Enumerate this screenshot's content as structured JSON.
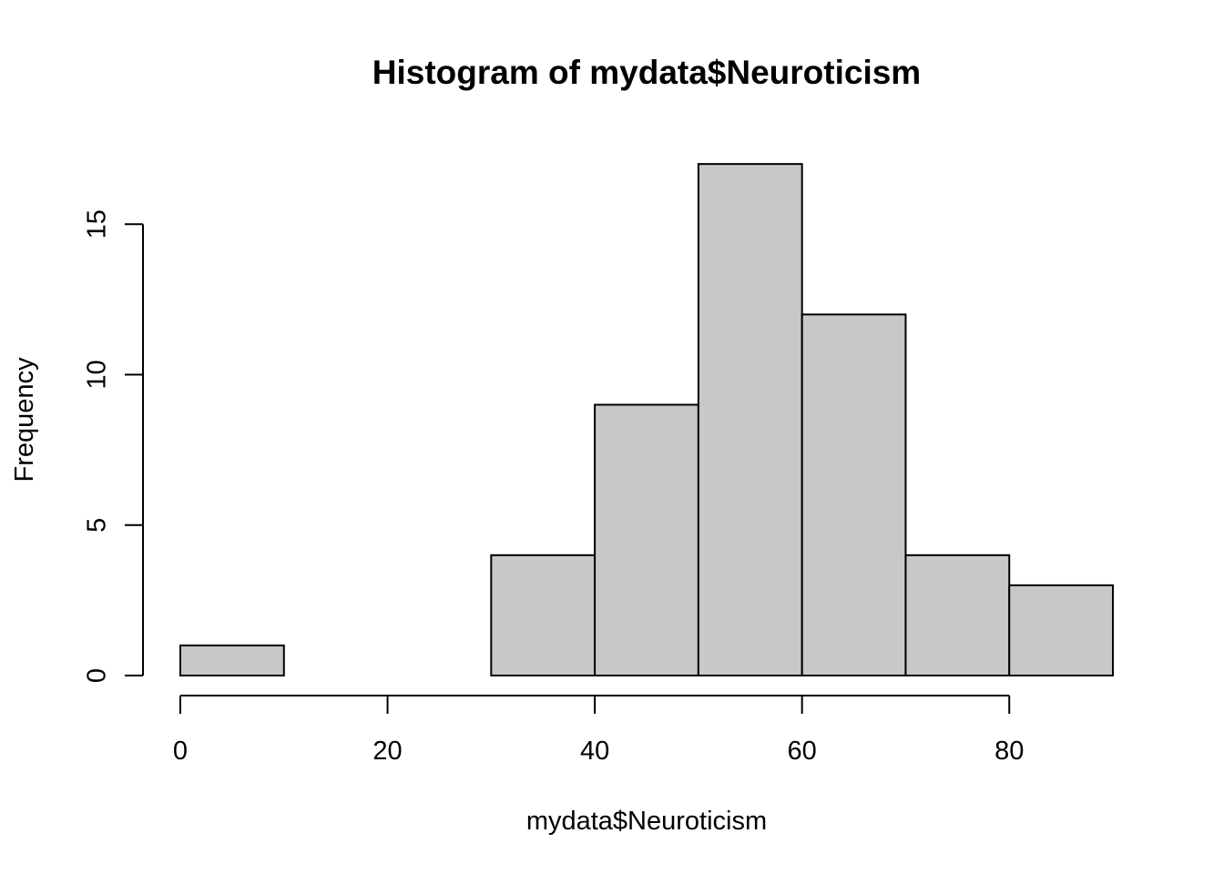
{
  "chart_data": {
    "type": "bar",
    "title": "Histogram of mydata$Neuroticism",
    "xlabel": "mydata$Neuroticism",
    "ylabel": "Frequency",
    "bin_edges": [
      0,
      10,
      20,
      30,
      40,
      50,
      60,
      70,
      80,
      90
    ],
    "counts": [
      1,
      0,
      0,
      4,
      9,
      17,
      12,
      4,
      3
    ],
    "xlim": [
      0,
      90
    ],
    "ylim": [
      0,
      17
    ],
    "x_ticks": [
      0,
      20,
      40,
      60,
      80
    ],
    "y_ticks": [
      0,
      5,
      10,
      15
    ],
    "x_tick_labels": [
      "0",
      "20",
      "40",
      "60",
      "80"
    ],
    "y_tick_labels": [
      "0",
      "5",
      "10",
      "15"
    ],
    "grid": false,
    "bar_color": "#c8c8c8",
    "edge_color": "#000000"
  }
}
